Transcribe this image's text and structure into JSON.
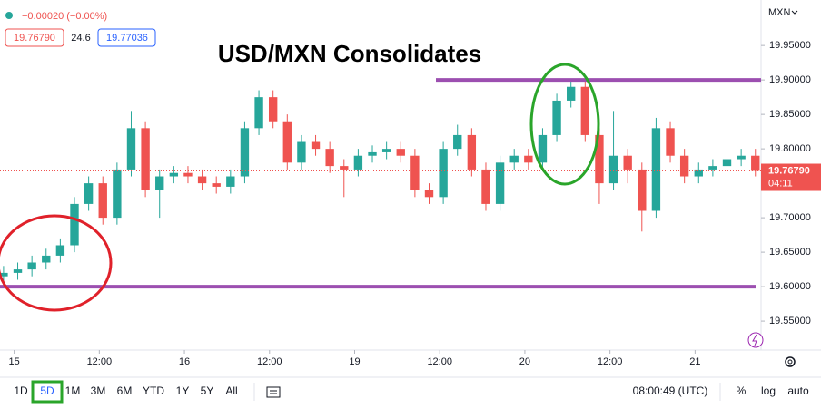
{
  "header": {
    "change": "−0.00020 (−0.00%)",
    "bid": "19.76790",
    "spread": "24.6",
    "ask": "19.77036",
    "currency": "MXN"
  },
  "toolbar": {
    "ranges": [
      "1D",
      "5D",
      "1M",
      "3M",
      "6M",
      "YTD",
      "1Y",
      "5Y",
      "All"
    ],
    "clock": "08:00:49 (UTC)",
    "percent": "%",
    "log": "log",
    "auto": "auto"
  },
  "chart_data": {
    "type": "candlestick",
    "title": "USD/MXN Consolidates",
    "x": [
      -1.5,
      0.5,
      2.5,
      4.5,
      6.5,
      8.5,
      10.5,
      12.5,
      14.5,
      16.5,
      18.5,
      20.5,
      22.5,
      24.5,
      26.5,
      28.5,
      30.5,
      32.5,
      34.5,
      36.5,
      38.5,
      40.5,
      42.5,
      44.5,
      46.5,
      48.5,
      50.5,
      52.5,
      54.5,
      56.5,
      58.5,
      60.5,
      62.5,
      64.5,
      66.5,
      68.5,
      70.5,
      72.5,
      74.5,
      76.5,
      78.5,
      80.5,
      82.5,
      84.5,
      86.5,
      88.5,
      90.5,
      92.5,
      94.5,
      96.5,
      98.5,
      100.5,
      102.5,
      104.5
    ],
    "open": [
      19.615,
      19.62,
      19.625,
      19.635,
      19.645,
      19.66,
      19.72,
      19.75,
      19.7,
      19.77,
      19.83,
      19.74,
      19.76,
      19.765,
      19.76,
      19.75,
      19.745,
      19.76,
      19.83,
      19.875,
      19.84,
      19.78,
      19.81,
      19.8,
      19.775,
      19.77,
      19.79,
      19.795,
      19.8,
      19.79,
      19.74,
      19.73,
      19.8,
      19.82,
      19.77,
      19.72,
      19.78,
      19.79,
      19.78,
      19.82,
      19.87,
      19.89,
      19.82,
      19.75,
      19.79,
      19.77,
      19.71,
      19.83,
      19.79,
      19.76,
      19.77,
      19.775,
      19.785,
      19.79
    ],
    "high": [
      19.63,
      19.635,
      19.645,
      19.655,
      19.67,
      19.73,
      19.76,
      19.76,
      19.78,
      19.855,
      19.84,
      19.77,
      19.775,
      19.775,
      19.77,
      19.76,
      19.77,
      19.84,
      19.885,
      19.885,
      19.85,
      19.82,
      19.82,
      19.81,
      19.785,
      19.8,
      19.805,
      19.81,
      19.81,
      19.8,
      19.75,
      19.81,
      19.835,
      19.83,
      19.78,
      19.79,
      19.8,
      19.8,
      19.83,
      19.88,
      19.9,
      19.9,
      19.83,
      19.855,
      19.8,
      19.78,
      19.845,
      19.84,
      19.8,
      19.78,
      19.785,
      19.795,
      19.8,
      19.8
    ],
    "low": [
      19.605,
      19.61,
      19.615,
      19.625,
      19.635,
      19.65,
      19.71,
      19.69,
      19.69,
      19.76,
      19.73,
      19.7,
      19.75,
      19.75,
      19.74,
      19.735,
      19.735,
      19.75,
      19.82,
      19.83,
      19.77,
      19.77,
      19.79,
      19.765,
      19.73,
      19.76,
      19.78,
      19.785,
      19.78,
      19.73,
      19.72,
      19.72,
      19.79,
      19.76,
      19.71,
      19.71,
      19.77,
      19.77,
      19.77,
      19.81,
      19.86,
      19.81,
      19.72,
      19.74,
      19.75,
      19.68,
      19.7,
      19.78,
      19.75,
      19.75,
      19.76,
      19.765,
      19.775,
      19.76
    ],
    "close": [
      19.62,
      19.625,
      19.635,
      19.645,
      19.66,
      19.72,
      19.75,
      19.7,
      19.77,
      19.83,
      19.74,
      19.76,
      19.765,
      19.76,
      19.75,
      19.745,
      19.76,
      19.83,
      19.875,
      19.84,
      19.78,
      19.81,
      19.8,
      19.775,
      19.77,
      19.79,
      19.795,
      19.8,
      19.79,
      19.74,
      19.73,
      19.8,
      19.82,
      19.77,
      19.72,
      19.78,
      19.79,
      19.78,
      19.82,
      19.87,
      19.89,
      19.82,
      19.75,
      19.79,
      19.77,
      19.71,
      19.83,
      19.79,
      19.76,
      19.77,
      19.775,
      19.785,
      19.79,
      19.768
    ],
    "xlim": [
      -2,
      105.3
    ],
    "xticks": [
      {
        "value": 0,
        "label": "15"
      },
      {
        "value": 12,
        "label": "12:00"
      },
      {
        "value": 24,
        "label": "16"
      },
      {
        "value": 36,
        "label": "12:00"
      },
      {
        "value": 48,
        "label": "19"
      },
      {
        "value": 60,
        "label": "12:00"
      },
      {
        "value": 72,
        "label": "20"
      },
      {
        "value": 84,
        "label": "12:00"
      },
      {
        "value": 96,
        "label": "21"
      }
    ],
    "ylim": [
      19.508,
      20.016
    ],
    "yticks": [
      {
        "value": 19.55,
        "label": "19.55000"
      },
      {
        "value": 19.6,
        "label": "19.60000"
      },
      {
        "value": 19.65,
        "label": "19.65000"
      },
      {
        "value": 19.7,
        "label": "19.70000"
      },
      {
        "value": 19.75,
        "label": "19.75000"
      },
      {
        "value": 19.8,
        "label": "19.80000"
      },
      {
        "value": 19.85,
        "label": "19.85000"
      },
      {
        "value": 19.9,
        "label": "19.90000"
      },
      {
        "value": 19.95,
        "label": "19.95000"
      }
    ],
    "last_price": {
      "value": 19.7679,
      "label": "19.76790",
      "countdown": "04:11"
    },
    "levels": [
      19.9,
      19.6
    ],
    "level_color": "#9c4fb0",
    "up_color": "#26a69a",
    "down_color": "#ef5350"
  }
}
